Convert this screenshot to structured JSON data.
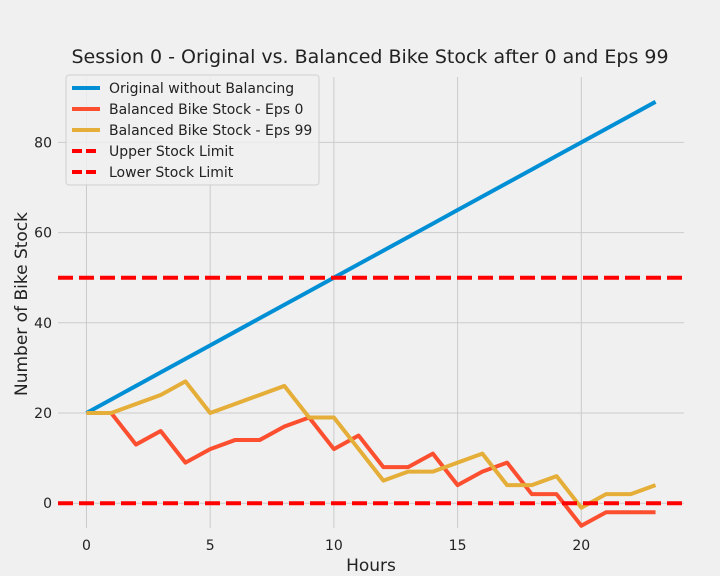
{
  "chart_data": {
    "type": "line",
    "title": "Session 0 - Original vs. Balanced Bike Stock after 0 and Eps 99",
    "xlabel": "Hours",
    "ylabel": "Number of Bike Stock",
    "xlim": [
      -1.15,
      24.15
    ],
    "ylim": [
      -5.5,
      94.5
    ],
    "xticks": [
      0,
      5,
      10,
      15,
      20
    ],
    "yticks": [
      0,
      20,
      40,
      60,
      80
    ],
    "grid": true,
    "legend_position": "top-left",
    "x": [
      0,
      1,
      2,
      3,
      4,
      5,
      6,
      7,
      8,
      9,
      10,
      11,
      12,
      13,
      14,
      15,
      16,
      17,
      18,
      19,
      20,
      21,
      22,
      23
    ],
    "series": [
      {
        "name": "Original without Balancing",
        "color": "#008fd5",
        "style": "solid",
        "values": [
          20,
          23,
          26,
          29,
          32,
          35,
          38,
          41,
          44,
          47,
          50,
          53,
          56,
          59,
          62,
          65,
          68,
          71,
          74,
          77,
          80,
          83,
          86,
          89
        ]
      },
      {
        "name": "Balanced Bike Stock - Eps 0",
        "color": "#fc4f30",
        "style": "solid",
        "values": [
          20,
          20,
          13,
          16,
          9,
          12,
          14,
          14,
          17,
          19,
          12,
          15,
          8,
          8,
          11,
          4,
          7,
          9,
          2,
          2,
          -5,
          -2,
          -2,
          -2
        ]
      },
      {
        "name": "Balanced Bike Stock - Eps 99",
        "color": "#e5ae38",
        "style": "solid",
        "values": [
          20,
          20,
          22,
          24,
          27,
          20,
          22,
          24,
          26,
          19,
          19,
          12,
          5,
          7,
          7,
          9,
          11,
          4,
          4,
          6,
          -1,
          2,
          2,
          4
        ]
      },
      {
        "name": "Upper Stock Limit",
        "color": "#ff0000",
        "style": "dashed",
        "constant": 50
      },
      {
        "name": "Lower Stock Limit",
        "color": "#ff0000",
        "style": "dashed",
        "constant": 0
      }
    ]
  }
}
